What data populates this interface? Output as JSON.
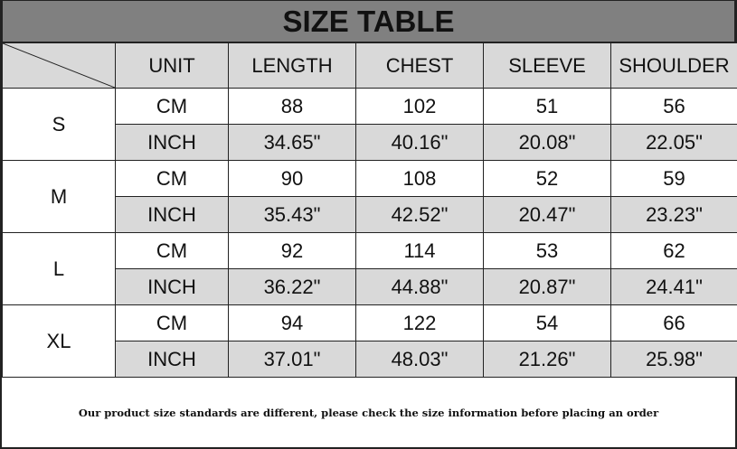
{
  "title": "SIZE TABLE",
  "headers": [
    "UNIT",
    "LENGTH",
    "CHEST",
    "SLEEVE",
    "SHOULDER"
  ],
  "rows": [
    {
      "size": "S",
      "cm": [
        "CM",
        "88",
        "102",
        "51",
        "56"
      ],
      "inch": [
        "INCH",
        "34.65\"",
        "40.16\"",
        "20.08\"",
        "22.05\""
      ]
    },
    {
      "size": "M",
      "cm": [
        "CM",
        "90",
        "108",
        "52",
        "59"
      ],
      "inch": [
        "INCH",
        "35.43\"",
        "42.52\"",
        "20.47\"",
        "23.23\""
      ]
    },
    {
      "size": "L",
      "cm": [
        "CM",
        "92",
        "114",
        "53",
        "62"
      ],
      "inch": [
        "INCH",
        "36.22\"",
        "44.88\"",
        "20.87\"",
        "24.41\""
      ]
    },
    {
      "size": "XL",
      "cm": [
        "CM",
        "94",
        "122",
        "54",
        "66"
      ],
      "inch": [
        "INCH",
        "37.01\"",
        "48.03\"",
        "21.26\"",
        "25.98\""
      ]
    }
  ],
  "note": "Our product size standards are different, please check the size information before placing an order",
  "colors": {
    "title_bg": "#808080",
    "shade": "#d9d9d9"
  }
}
